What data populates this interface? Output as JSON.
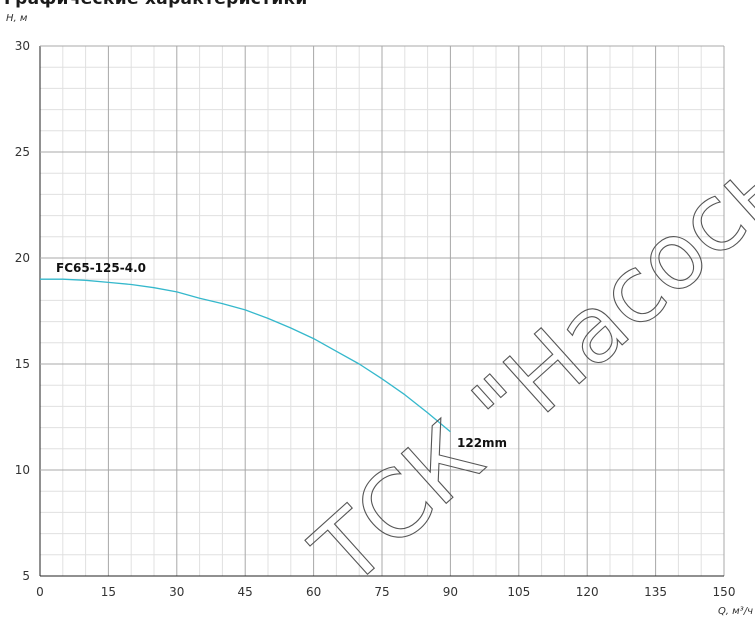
{
  "page": {
    "title": "Графические характеристики"
  },
  "watermark": {
    "text": "ТСК \"Насосы\""
  },
  "colors": {
    "curve": "#35b8cc",
    "grid_major": "#a8a8a8",
    "grid_minor": "#e0e0e0",
    "axis": "#222222"
  },
  "chart_data": {
    "type": "line",
    "title": "",
    "xlabel": "Q, м³/ч",
    "ylabel": "H, м",
    "xlim": [
      0,
      150
    ],
    "ylim": [
      5,
      30
    ],
    "xticks": [
      0,
      15,
      30,
      45,
      60,
      75,
      90,
      105,
      120,
      135,
      150
    ],
    "yticks": [
      5,
      10,
      15,
      20,
      25,
      30
    ],
    "grid": true,
    "series": [
      {
        "name": "FC65-125-4.0",
        "end_label": "122mm",
        "x": [
          0,
          5,
          10,
          15,
          20,
          25,
          30,
          35,
          40,
          45,
          50,
          55,
          60,
          65,
          70,
          75,
          80,
          85,
          90
        ],
        "y": [
          19.0,
          19.0,
          18.95,
          18.85,
          18.75,
          18.6,
          18.4,
          18.1,
          17.85,
          17.55,
          17.15,
          16.7,
          16.2,
          15.6,
          15.0,
          14.3,
          13.55,
          12.7,
          11.8
        ]
      }
    ]
  }
}
